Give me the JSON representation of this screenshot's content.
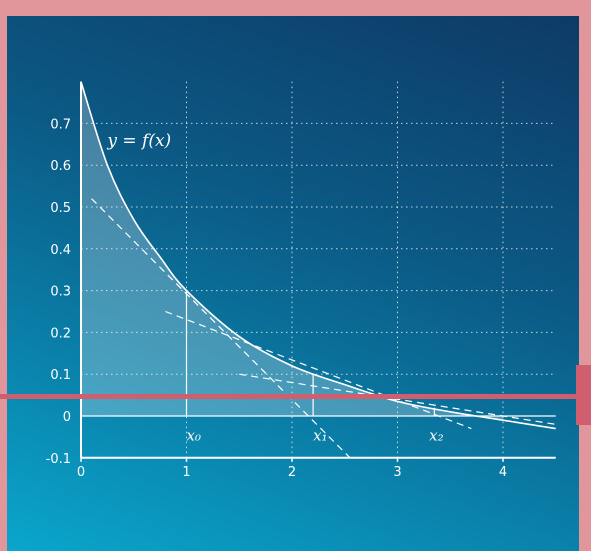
{
  "chart_data": {
    "type": "line",
    "title": "",
    "xlabel": "",
    "ylabel": "",
    "xlim": [
      0,
      4.5
    ],
    "ylim": [
      -0.1,
      0.8
    ],
    "grid": true,
    "x_ticks": [
      "0",
      "1",
      "2",
      "3",
      "4"
    ],
    "y_ticks": [
      "0.7",
      "0.6",
      "0.5",
      "0.4",
      "0.3",
      "0.2",
      "0.1",
      "0",
      "-0.1"
    ],
    "series": [
      {
        "style": "solid",
        "x": [
          0,
          0.25,
          0.5,
          0.75,
          1,
          1.5,
          2,
          2.5,
          3,
          3.5,
          4,
          4.5
        ],
        "y": [
          0.8,
          0.6,
          0.47,
          0.38,
          0.3,
          0.19,
          0.12,
          0.075,
          0.035,
          0.01,
          -0.01,
          -0.03
        ]
      },
      {
        "style": "dashed",
        "x": [
          0.1,
          2.55
        ],
        "y": [
          0.52,
          -0.1
        ]
      },
      {
        "style": "dashed",
        "x": [
          0.8,
          3.7
        ],
        "y": [
          0.25,
          -0.03
        ]
      },
      {
        "style": "dashed",
        "x": [
          1.5,
          4.5
        ],
        "y": [
          0.1,
          -0.02
        ]
      }
    ],
    "fill": {
      "region": "under curve from x=0 to x=4",
      "color": "#ffffff",
      "opacity": 0.25
    },
    "annotations": [
      {
        "text": "y = f(x)",
        "x": 0.25,
        "y": 0.66
      },
      {
        "text": "x₀",
        "x": 1.0,
        "y": -0.04
      },
      {
        "text": "x₁",
        "x": 2.2,
        "y": -0.04
      },
      {
        "text": "x₂",
        "x": 3.3,
        "y": -0.04
      }
    ],
    "markers": [
      {
        "x": 1.0,
        "y0": 0,
        "y1": 0.3
      },
      {
        "x": 2.2,
        "y0": 0,
        "y1": 0.1
      },
      {
        "x": 3.35,
        "y0": 0,
        "y1": 0.02
      }
    ]
  },
  "colors": {
    "line": "#ffffff",
    "grid": "#ffffff",
    "marker": "#cf5f6e",
    "border": "#e0969b"
  }
}
